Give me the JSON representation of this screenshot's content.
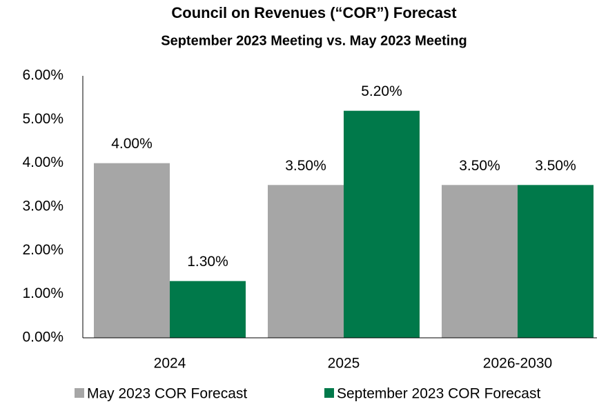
{
  "chart_data": {
    "type": "bar",
    "title": "Council on Revenues (“COR”) Forecast",
    "subtitle": "September 2023 Meeting vs. May 2023 Meeting",
    "categories": [
      "2024",
      "2025",
      "2026-2030"
    ],
    "series": [
      {
        "name": "May 2023 COR Forecast",
        "color": "#a6a6a6",
        "values": [
          4.0,
          3.5,
          3.5
        ],
        "value_labels": [
          "4.00%",
          "3.50%",
          "3.50%"
        ]
      },
      {
        "name": "September 2023 COR Forecast",
        "color": "#00794a",
        "values": [
          1.3,
          5.2,
          3.5
        ],
        "value_labels": [
          "1.30%",
          "5.20%",
          "3.50%"
        ]
      }
    ],
    "ylim": [
      0,
      6
    ],
    "yticks": [
      {
        "value": 0,
        "label": "0.00%"
      },
      {
        "value": 1,
        "label": "1.00%"
      },
      {
        "value": 2,
        "label": "2.00%"
      },
      {
        "value": 3,
        "label": "3.00%"
      },
      {
        "value": 4,
        "label": "4.00%"
      },
      {
        "value": 5,
        "label": "5.00%"
      },
      {
        "value": 6,
        "label": "6.00%"
      }
    ],
    "grid": false,
    "legend": "bottom"
  }
}
